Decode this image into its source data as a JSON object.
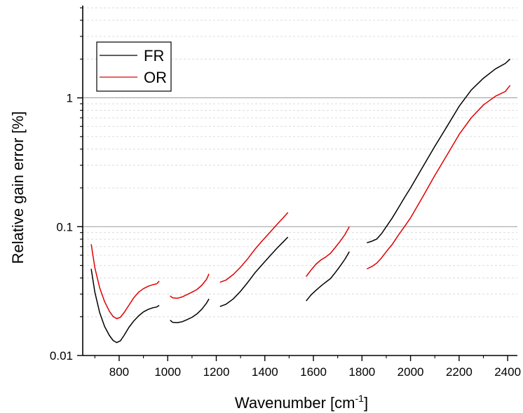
{
  "chart_data": {
    "type": "line",
    "xlabel": "Wavenumber [cm",
    "xlabel_sup": "-1",
    "xlabel_close": "]",
    "ylabel": "Relative gain error [%]",
    "xlim": [
      650,
      2440
    ],
    "ylim": [
      0.01,
      5.2
    ],
    "yscale": "log",
    "x_ticks": [
      800,
      1000,
      1200,
      1400,
      1600,
      1800,
      2000,
      2200,
      2400
    ],
    "y_ticks": [
      {
        "value": 0.01,
        "label": "0.01"
      },
      {
        "value": 0.1,
        "label": "0.1"
      },
      {
        "value": 1,
        "label": "1"
      }
    ],
    "grid": {
      "major_y": true,
      "minor_y": true
    },
    "legend": {
      "position": "top-left"
    },
    "series": [
      {
        "name": "FR",
        "color": "#000000",
        "segments": [
          [
            [
              685,
              0.047
            ],
            [
              700,
              0.031
            ],
            [
              720,
              0.0215
            ],
            [
              740,
              0.0168
            ],
            [
              760,
              0.0143
            ],
            [
              775,
              0.0131
            ],
            [
              790,
              0.0126
            ],
            [
              805,
              0.013
            ],
            [
              820,
              0.0143
            ],
            [
              840,
              0.0165
            ],
            [
              860,
              0.0185
            ],
            [
              880,
              0.0203
            ],
            [
              900,
              0.0218
            ],
            [
              920,
              0.0228
            ],
            [
              940,
              0.0235
            ],
            [
              955,
              0.0238
            ],
            [
              965,
              0.0245
            ]
          ],
          [
            [
              1010,
              0.0188
            ],
            [
              1020,
              0.0181
            ],
            [
              1040,
              0.018
            ],
            [
              1060,
              0.0183
            ],
            [
              1080,
              0.019
            ],
            [
              1100,
              0.0198
            ],
            [
              1120,
              0.021
            ],
            [
              1140,
              0.0228
            ],
            [
              1160,
              0.0255
            ],
            [
              1170,
              0.0275
            ]
          ],
          [
            [
              1215,
              0.024
            ],
            [
              1240,
              0.025
            ],
            [
              1270,
              0.0275
            ],
            [
              1300,
              0.0315
            ],
            [
              1330,
              0.037
            ],
            [
              1360,
              0.044
            ],
            [
              1390,
              0.051
            ],
            [
              1420,
              0.059
            ],
            [
              1450,
              0.068
            ],
            [
              1475,
              0.076
            ],
            [
              1495,
              0.083
            ]
          ],
          [
            [
              1570,
              0.0265
            ],
            [
              1590,
              0.0295
            ],
            [
              1610,
              0.032
            ],
            [
              1630,
              0.0345
            ],
            [
              1650,
              0.037
            ],
            [
              1670,
              0.0395
            ],
            [
              1690,
              0.044
            ],
            [
              1710,
              0.0495
            ],
            [
              1730,
              0.056
            ],
            [
              1748,
              0.064
            ]
          ],
          [
            [
              1820,
              0.075
            ],
            [
              1840,
              0.077
            ],
            [
              1860,
              0.08
            ],
            [
              1880,
              0.088
            ],
            [
              1900,
              0.1
            ],
            [
              1925,
              0.117
            ],
            [
              1950,
              0.14
            ],
            [
              1975,
              0.168
            ],
            [
              2000,
              0.2
            ],
            [
              2050,
              0.29
            ],
            [
              2100,
              0.42
            ],
            [
              2150,
              0.6
            ],
            [
              2200,
              0.86
            ],
            [
              2250,
              1.15
            ],
            [
              2300,
              1.42
            ],
            [
              2350,
              1.68
            ],
            [
              2390,
              1.85
            ],
            [
              2410,
              2.0
            ]
          ]
        ]
      },
      {
        "name": "OR",
        "color": "#e00000",
        "segments": [
          [
            [
              685,
              0.073
            ],
            [
              700,
              0.048
            ],
            [
              720,
              0.0335
            ],
            [
              740,
              0.0262
            ],
            [
              760,
              0.022
            ],
            [
              775,
              0.0201
            ],
            [
              790,
              0.0193
            ],
            [
              805,
              0.0198
            ],
            [
              820,
              0.0215
            ],
            [
              840,
              0.0245
            ],
            [
              860,
              0.028
            ],
            [
              880,
              0.031
            ],
            [
              900,
              0.033
            ],
            [
              920,
              0.0345
            ],
            [
              940,
              0.0355
            ],
            [
              955,
              0.036
            ],
            [
              965,
              0.0378
            ]
          ],
          [
            [
              1010,
              0.029
            ],
            [
              1020,
              0.028
            ],
            [
              1040,
              0.0278
            ],
            [
              1060,
              0.0285
            ],
            [
              1080,
              0.0297
            ],
            [
              1100,
              0.031
            ],
            [
              1120,
              0.0325
            ],
            [
              1140,
              0.035
            ],
            [
              1160,
              0.039
            ],
            [
              1170,
              0.043
            ]
          ],
          [
            [
              1215,
              0.037
            ],
            [
              1240,
              0.0385
            ],
            [
              1270,
              0.0425
            ],
            [
              1300,
              0.0485
            ],
            [
              1330,
              0.0565
            ],
            [
              1360,
              0.067
            ],
            [
              1390,
              0.078
            ],
            [
              1420,
              0.09
            ],
            [
              1450,
              0.104
            ],
            [
              1475,
              0.117
            ],
            [
              1495,
              0.129
            ]
          ],
          [
            [
              1570,
              0.041
            ],
            [
              1590,
              0.046
            ],
            [
              1610,
              0.051
            ],
            [
              1630,
              0.055
            ],
            [
              1650,
              0.058
            ],
            [
              1670,
              0.062
            ],
            [
              1690,
              0.069
            ],
            [
              1710,
              0.077
            ],
            [
              1730,
              0.087
            ],
            [
              1748,
              0.1
            ]
          ],
          [
            [
              1820,
              0.047
            ],
            [
              1840,
              0.049
            ],
            [
              1860,
              0.052
            ],
            [
              1880,
              0.057
            ],
            [
              1900,
              0.064
            ],
            [
              1925,
              0.073
            ],
            [
              1950,
              0.086
            ],
            [
              1975,
              0.1
            ],
            [
              2000,
              0.117
            ],
            [
              2050,
              0.17
            ],
            [
              2100,
              0.25
            ],
            [
              2150,
              0.36
            ],
            [
              2200,
              0.52
            ],
            [
              2250,
              0.7
            ],
            [
              2300,
              0.88
            ],
            [
              2350,
              1.03
            ],
            [
              2390,
              1.12
            ],
            [
              2410,
              1.25
            ]
          ]
        ]
      }
    ]
  }
}
